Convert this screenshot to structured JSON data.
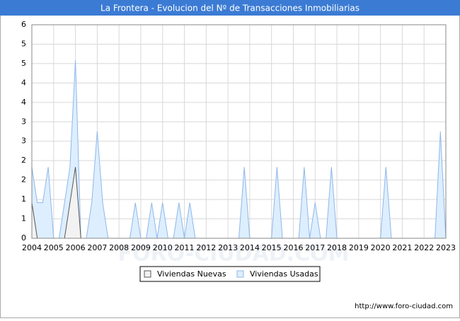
{
  "chart_data": {
    "type": "area",
    "title": "La Frontera - Evolucion del Nº de Transacciones Inmobiliarias",
    "watermark": "FORO-CIUDAD.COM",
    "source": "http://www.foro-ciudad.com",
    "x": [
      2004,
      2004.25,
      2004.5,
      2004.75,
      2005,
      2005.25,
      2005.5,
      2005.75,
      2006,
      2006.25,
      2006.5,
      2006.75,
      2007,
      2007.25,
      2007.5,
      2007.75,
      2008,
      2008.25,
      2008.5,
      2008.75,
      2009,
      2009.25,
      2009.5,
      2009.75,
      2010,
      2010.25,
      2010.5,
      2010.75,
      2011,
      2011.25,
      2011.5,
      2011.75,
      2012,
      2012.25,
      2012.5,
      2012.75,
      2013,
      2013.25,
      2013.5,
      2013.75,
      2014,
      2014.25,
      2014.5,
      2014.75,
      2015,
      2015.25,
      2015.5,
      2015.75,
      2016,
      2016.25,
      2016.5,
      2016.75,
      2017,
      2017.25,
      2017.5,
      2017.75,
      2018,
      2018.25,
      2018.5,
      2018.75,
      2019,
      2019.25,
      2019.5,
      2019.75,
      2020,
      2020.25,
      2020.5,
      2020.75,
      2021,
      2021.25,
      2021.5,
      2021.75,
      2022,
      2022.25,
      2022.5,
      2022.75,
      2023
    ],
    "series": [
      {
        "name": "Viviendas Nuevas",
        "color": "#555555",
        "fill": "#f2f2f2",
        "values": [
          1,
          0,
          0,
          0,
          0,
          0,
          0,
          1,
          2,
          0,
          0,
          0,
          0,
          0,
          0,
          0,
          0,
          0,
          0,
          0,
          0,
          0,
          0,
          0,
          0,
          0,
          0,
          0,
          0,
          0,
          0,
          0,
          0,
          0,
          0,
          0,
          0,
          0,
          0,
          0,
          0,
          0,
          0,
          0,
          0,
          0,
          0,
          0,
          0,
          0,
          0,
          0,
          0,
          0,
          0,
          0,
          0,
          0,
          0,
          0,
          0,
          0,
          0,
          0,
          0,
          0,
          0,
          0,
          0,
          0,
          0,
          0,
          0,
          0,
          0,
          0,
          0
        ]
      },
      {
        "name": "Viviendas Usadas",
        "color": "#8fb8e8",
        "fill": "#ddeeff",
        "values": [
          2,
          1,
          1,
          2,
          0,
          0,
          1,
          2,
          5,
          0,
          0,
          1,
          3,
          1,
          0,
          0,
          0,
          0,
          0,
          1,
          0,
          0,
          1,
          0,
          1,
          0,
          0,
          1,
          0,
          1,
          0,
          0,
          0,
          0,
          0,
          0,
          0,
          0,
          0,
          2,
          0,
          0,
          0,
          0,
          0,
          2,
          0,
          0,
          0,
          0,
          2,
          0,
          1,
          0,
          0,
          2,
          0,
          0,
          0,
          0,
          0,
          0,
          0,
          0,
          0,
          2,
          0,
          0,
          0,
          0,
          0,
          0,
          0,
          0,
          0,
          3,
          0
        ]
      }
    ],
    "xlim": [
      2004,
      2023
    ],
    "xticks": [
      2004,
      2005,
      2006,
      2007,
      2008,
      2009,
      2010,
      2011,
      2012,
      2013,
      2014,
      2015,
      2016,
      2017,
      2018,
      2019,
      2020,
      2021,
      2022,
      2023
    ],
    "ylim": [
      0,
      6
    ],
    "yticks": [
      0,
      {
        "value": 0.5455,
        "label": "1"
      },
      {
        "value": 1.0909,
        "label": "1"
      },
      {
        "value": 1.6364,
        "label": "2"
      },
      {
        "value": 2.1818,
        "label": "2"
      },
      {
        "value": 2.7273,
        "label": "3"
      },
      {
        "value": 3.2727,
        "label": "3"
      },
      {
        "value": 3.8182,
        "label": "4"
      },
      {
        "value": 4.3636,
        "label": "4"
      },
      {
        "value": 4.9091,
        "label": "5"
      },
      {
        "value": 5.4545,
        "label": "5"
      },
      6
    ],
    "grid": true
  }
}
